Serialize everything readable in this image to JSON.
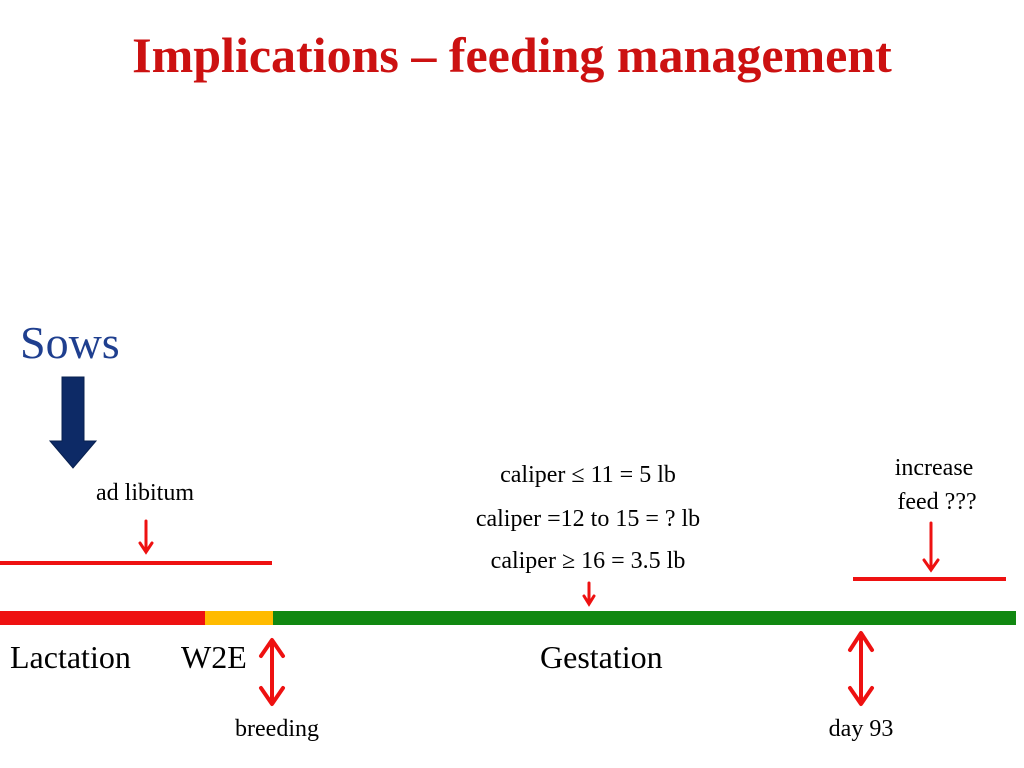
{
  "slide": {
    "title": "Implications – feeding management",
    "subject": "Sows"
  },
  "labels": {
    "ad_libitum": "ad libitum",
    "caliper_low": "caliper ≤ 11 = 5 lb",
    "caliper_mid": "caliper =12 to 15 = ? lb",
    "caliper_high": "caliper ≥ 16 = 3.5 lb",
    "increase_feed_line1": "increase",
    "increase_feed_line2": "feed ???",
    "breeding": "breeding",
    "day93": "day 93"
  },
  "phases": {
    "lactation": "Lactation",
    "w2e": "W2E",
    "gestation": "Gestation"
  },
  "colors": {
    "title": "#cc1111",
    "sows_text": "#1f3f8f",
    "navy_arrow": "#0d2a66",
    "lactation_bar": "#ee1111",
    "w2e_bar": "#ffbb00",
    "gestation_bar": "#118811",
    "red_marks": "#ee1111"
  }
}
